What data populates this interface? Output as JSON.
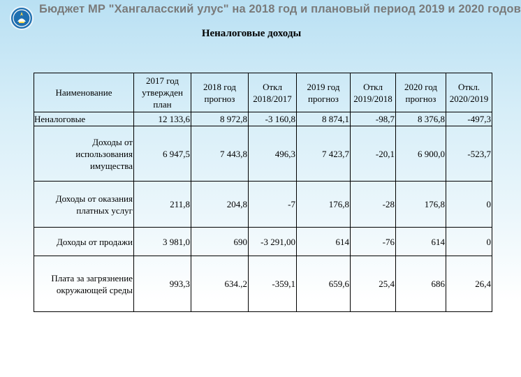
{
  "header": {
    "title": "Бюджет МР \"Хангаласский улус\" на 2018 год и плановый период 2019 и 2020 годов",
    "emblem_icon": "republic-emblem-icon"
  },
  "subtitle": "Неналоговые доходы",
  "table": {
    "columns": [
      "Наименование",
      "2017 год утвержден план",
      "2018 год прогноз",
      "Откл 2018/2017",
      "2019 год прогноз",
      "Откл 2019/2018",
      "2020 год прогноз",
      "Откл. 2020/2019"
    ],
    "rows": [
      {
        "name": "Неналоговые",
        "v2017": "12 133,6",
        "v2018": "8 972,8",
        "d1817": "-3 160,8",
        "v2019": "8 874,1",
        "d1918": "-98,7",
        "v2020": "8 376,8",
        "d2019": "-497,3"
      },
      {
        "name": "Доходы от использования имущества",
        "v2017": "6 947,5",
        "v2018": "7 443,8",
        "d1817": "496,3",
        "v2019": "7 423,7",
        "d1918": "-20,1",
        "v2020": "6 900,0",
        "d2019": "-523,7"
      },
      {
        "name": "Доходы от оказания платных услуг",
        "v2017": "211,8",
        "v2018": "204,8",
        "d1817": "-7",
        "v2019": "176,8",
        "d1918": "-28",
        "v2020": "176,8",
        "d2019": "0"
      },
      {
        "name": "Доходы от продажи",
        "v2017": "3 981,0",
        "v2018": "690",
        "d1817": "-3 291,00",
        "v2019": "614",
        "d1918": "-76",
        "v2020": "614",
        "d2019": "0"
      },
      {
        "name": "Плата за загрязнение окружающей среды",
        "v2017": "993,3",
        "v2018": "634.,2",
        "d1817": "-359,1",
        "v2019": "659,6",
        "d1918": "25,4",
        "v2020": "686",
        "d2019": "26,4"
      }
    ]
  }
}
